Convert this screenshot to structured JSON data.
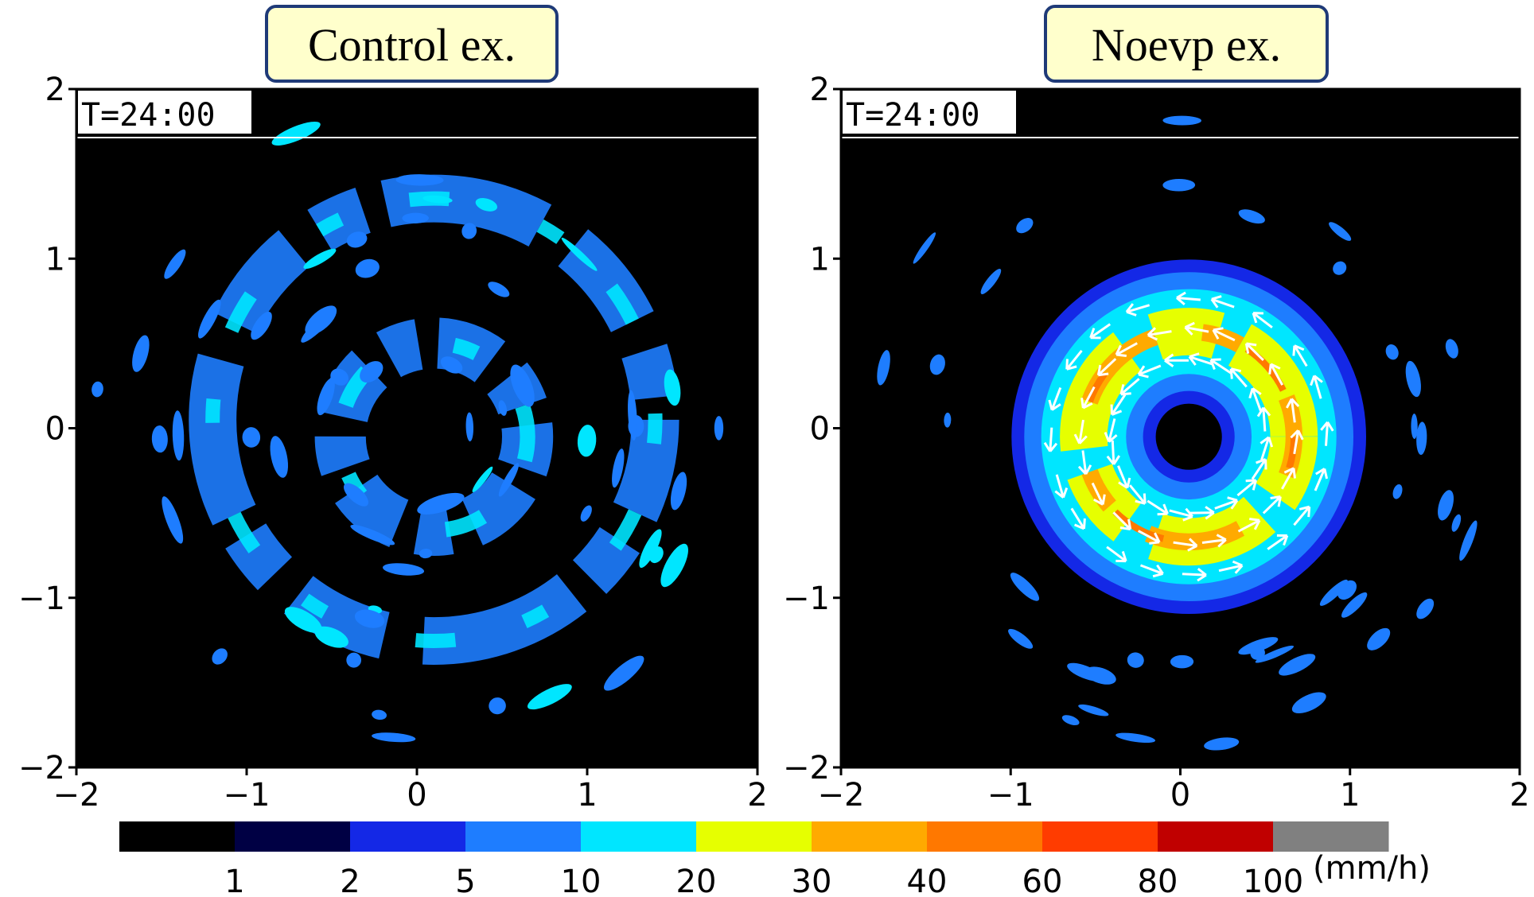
{
  "chart_data": [
    {
      "type": "heatmap",
      "title": "Control ex.",
      "label": "T=24:00",
      "xlim": [
        -2,
        2
      ],
      "ylim": [
        -2,
        2
      ],
      "xticks": [
        {
          "value": -2,
          "label": "−2"
        },
        {
          "value": -1,
          "label": "−1"
        },
        0,
        1,
        2
      ],
      "yticks": [
        {
          "value": -2,
          "label": "−2"
        },
        {
          "value": -1,
          "label": "−1"
        },
        0,
        1,
        2
      ]
    },
    {
      "type": "heatmap",
      "title": "Noevp ex.",
      "label": "T=24:00",
      "xlim": [
        -2,
        2
      ],
      "ylim": [
        -2,
        2
      ],
      "xticks": [
        {
          "value": -2,
          "label": "−2"
        },
        {
          "value": -1,
          "label": "−1"
        },
        0,
        1,
        2
      ],
      "yticks": [
        {
          "value": -2,
          "label": "−2"
        },
        {
          "value": -1,
          "label": "−1"
        },
        0,
        1,
        2
      ]
    }
  ],
  "colorbar": {
    "colors": [
      "#000000",
      "#000044",
      "#1428e6",
      "#1e7dff",
      "#00e6ff",
      "#e6ff00",
      "#ffaa00",
      "#ff7800",
      "#ff3c00",
      "#c00000",
      "#808080"
    ],
    "ticks": [
      1,
      2,
      5,
      10,
      20,
      30,
      40,
      60,
      80,
      100
    ],
    "unit": "(mm/h)"
  }
}
